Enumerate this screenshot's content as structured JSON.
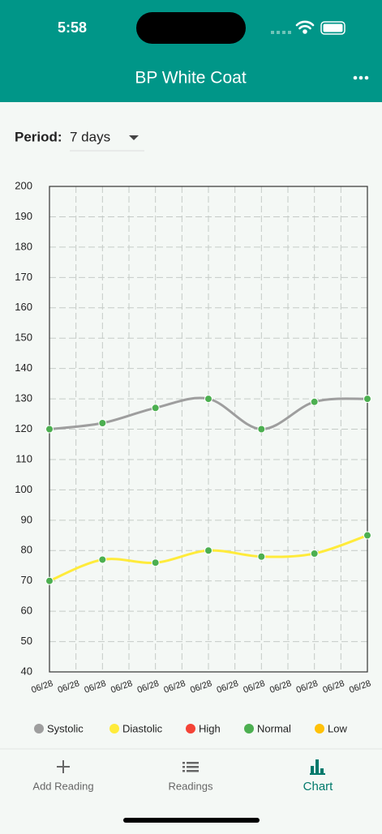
{
  "status_bar": {
    "time": "5:58"
  },
  "header": {
    "title": "BP White Coat"
  },
  "period": {
    "label": "Period:",
    "value": "7 days"
  },
  "chart_data": {
    "type": "line",
    "x": [
      0,
      2,
      4,
      6,
      8,
      10,
      12
    ],
    "xlim": [
      0,
      12
    ],
    "xticks": [
      {
        "value": 0,
        "label": "06/28"
      },
      {
        "value": 1,
        "label": "06/28"
      },
      {
        "value": 2,
        "label": "06/28"
      },
      {
        "value": 3,
        "label": "06/28"
      },
      {
        "value": 4,
        "label": "06/28"
      },
      {
        "value": 5,
        "label": "06/28"
      },
      {
        "value": 6,
        "label": "06/28"
      },
      {
        "value": 7,
        "label": "06/28"
      },
      {
        "value": 8,
        "label": "06/28"
      },
      {
        "value": 9,
        "label": "06/28"
      },
      {
        "value": 10,
        "label": "06/28"
      },
      {
        "value": 11,
        "label": "06/28"
      },
      {
        "value": 12,
        "label": "06/28"
      }
    ],
    "ylim": [
      40,
      200
    ],
    "yticks": [
      40,
      50,
      60,
      70,
      80,
      90,
      100,
      110,
      120,
      130,
      140,
      150,
      160,
      170,
      180,
      190,
      200
    ],
    "grid": true,
    "smooth": true,
    "series": [
      {
        "name": "Systolic",
        "color": "#9e9e9e",
        "values": [
          120,
          122,
          127,
          130,
          120,
          129,
          130
        ]
      },
      {
        "name": "Diastolic",
        "color": "#ffeb3b",
        "values": [
          70,
          77,
          76,
          80,
          78,
          79,
          85
        ]
      }
    ],
    "marker_color": "#4caf50",
    "status_legend": [
      {
        "name": "High",
        "color": "#f44336"
      },
      {
        "name": "Normal",
        "color": "#4caf50"
      },
      {
        "name": "Low",
        "color": "#ffc107"
      }
    ]
  },
  "tab_bar": {
    "items": [
      {
        "label": "Add Reading"
      },
      {
        "label": "Readings"
      },
      {
        "label": "Chart"
      }
    ],
    "active": 2
  }
}
